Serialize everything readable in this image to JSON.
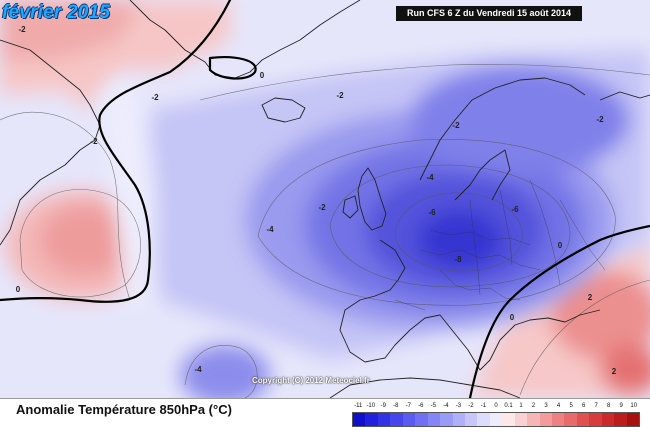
{
  "header": {
    "title": "février 2015",
    "run_label": "Run CFS 6 Z du Vendredi 15 août 2014"
  },
  "copyright": "Copyright (C) 2012 Meteociel.fr",
  "footer": {
    "legend_title": "Anomalie Température 850hPa (°C)"
  },
  "legend": {
    "ticks": [
      "-11",
      "-10",
      "-9",
      "-8",
      "-7",
      "-6",
      "-5",
      "-4",
      "-3",
      "-2",
      "-1",
      "0",
      "0.1",
      "1",
      "2",
      "3",
      "4",
      "5",
      "6",
      "7",
      "8",
      "9",
      "10"
    ],
    "colors": [
      "#1010cc",
      "#2020dd",
      "#3333e6",
      "#4646ec",
      "#5b5bf0",
      "#7070f3",
      "#8585f5",
      "#9a9af7",
      "#b0b0f9",
      "#c6c6fb",
      "#dcdcfd",
      "#ececfe",
      "#fde7e7",
      "#fbd0d0",
      "#f7b6b6",
      "#f39c9c",
      "#ee8282",
      "#e86a6a",
      "#e05252",
      "#d83c3c",
      "#cc2a2a",
      "#bb1c1c",
      "#a61010"
    ]
  },
  "map": {
    "contour_labels": [
      "-2",
      "-2",
      "-2",
      "0",
      "-2",
      "-2",
      "0",
      "-2",
      "-4",
      "-6",
      "-6",
      "-8",
      "-2",
      "0",
      "-4",
      "0",
      "-4",
      "2",
      "2"
    ]
  }
}
